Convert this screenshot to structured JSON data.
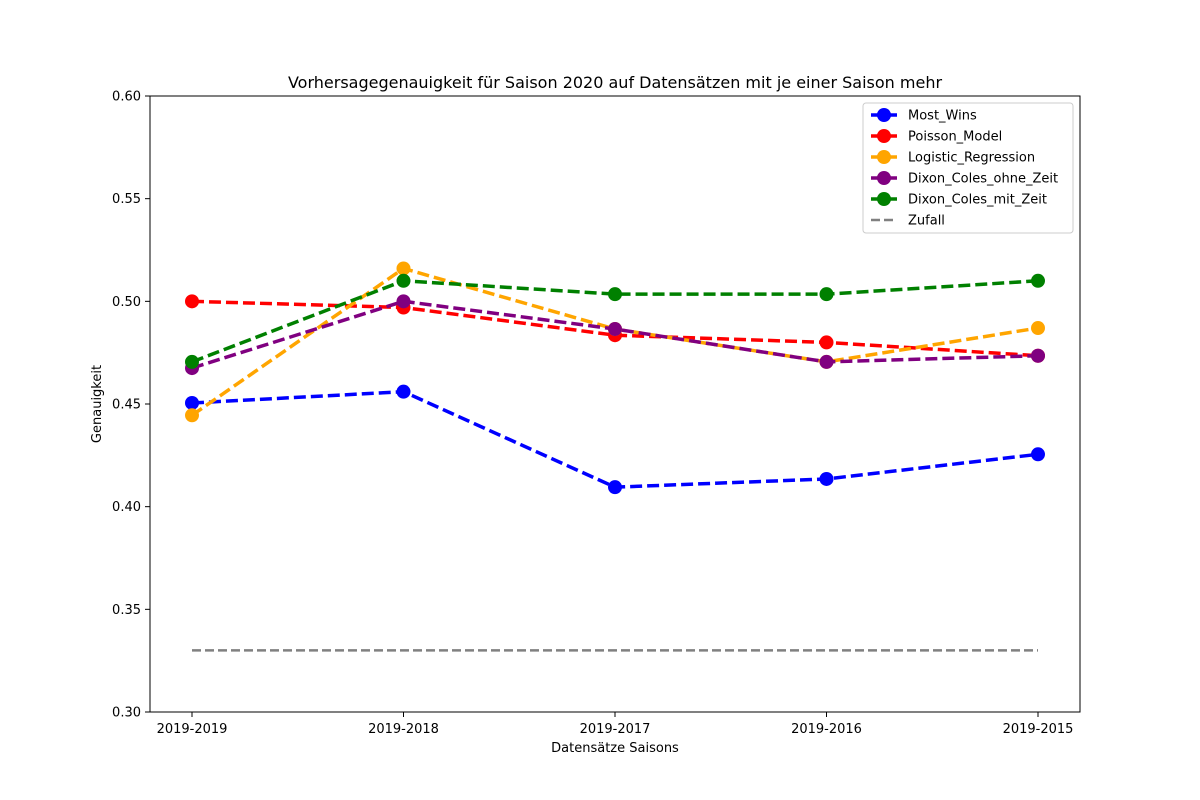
{
  "chart_data": {
    "type": "line",
    "title": "Vorhersagegenauigkeit für Saison 2020 auf Datensätzen mit je einer Saison mehr",
    "xlabel": "Datensätze Saisons",
    "ylabel": "Genauigkeit",
    "categories": [
      "2019-2019",
      "2019-2018",
      "2019-2017",
      "2019-2016",
      "2019-2015"
    ],
    "ylim": [
      0.3,
      0.6
    ],
    "yticks": [
      "0.30",
      "0.35",
      "0.40",
      "0.45",
      "0.50",
      "0.55",
      "0.60"
    ],
    "grid": false,
    "legend_position": "top-right",
    "series": [
      {
        "name": "Most_Wins",
        "color": "#0000ff",
        "values": [
          0.4505,
          0.456,
          0.4095,
          0.4135,
          0.4255
        ]
      },
      {
        "name": "Poisson_Model",
        "color": "#ff0000",
        "values": [
          0.5,
          0.497,
          0.4835,
          0.48,
          0.4735
        ]
      },
      {
        "name": "Logistic_Regression",
        "color": "#ffa500",
        "values": [
          0.4445,
          0.516,
          0.4865,
          0.4705,
          0.487
        ]
      },
      {
        "name": "Dixon_Coles_ohne_Zeit",
        "color": "#800080",
        "values": [
          0.4675,
          0.5,
          0.4865,
          0.4705,
          0.4735
        ]
      },
      {
        "name": "Dixon_Coles_mit_Zeit",
        "color": "#008000",
        "values": [
          0.4705,
          0.51,
          0.5035,
          0.5035,
          0.51
        ]
      }
    ],
    "baseline": {
      "name": "Zufall",
      "color": "#808080",
      "value": 0.33
    }
  }
}
